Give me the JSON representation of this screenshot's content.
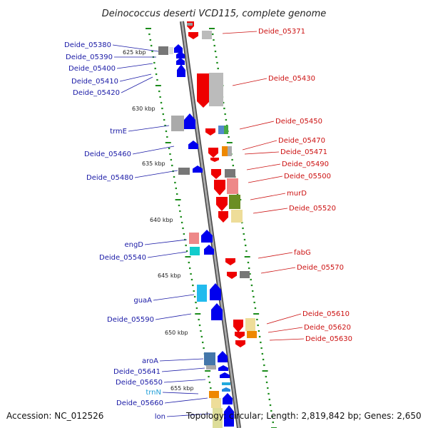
{
  "title": "Deinococcus deserti VCD115, complete genome",
  "footer": {
    "accession": "Accession: NC_012526",
    "topology": "Topology: circular; Length: 2,819,842 bp; Genes: 2,650"
  },
  "scale_labels": [
    "625 kbp",
    "630 kbp",
    "635 kbp",
    "640 kbp",
    "645 kbp",
    "650 kbp",
    "655 kbp"
  ],
  "genes_left": [
    "Deide_05380",
    "Deide_05390",
    "Deide_05400",
    "Deide_05410",
    "Deide_05420",
    "trmE",
    "Deide_05460",
    "Deide_05480",
    "engD",
    "Deide_05540",
    "guaA",
    "Deide_05590",
    "aroA",
    "Deide_05641",
    "Deide_05650",
    "trnN",
    "Deide_05660",
    "lon"
  ],
  "genes_right": [
    "Deide_05371",
    "Deide_05430",
    "Deide_05450",
    "Deide_05470",
    "Deide_05471",
    "Deide_05490",
    "Deide_05500",
    "murD",
    "Deide_05520",
    "fabG",
    "Deide_05570",
    "Deide_05610",
    "Deide_05620",
    "Deide_05630"
  ],
  "colors": {
    "left_label": "#1a1aa6",
    "right_label": "#cc1111",
    "trna_label": "#22a0d8",
    "strand_forward": "#0000ee",
    "strand_reverse": "#ee0000",
    "backbone": "#888888",
    "ticks": "#1c8c1c"
  }
}
